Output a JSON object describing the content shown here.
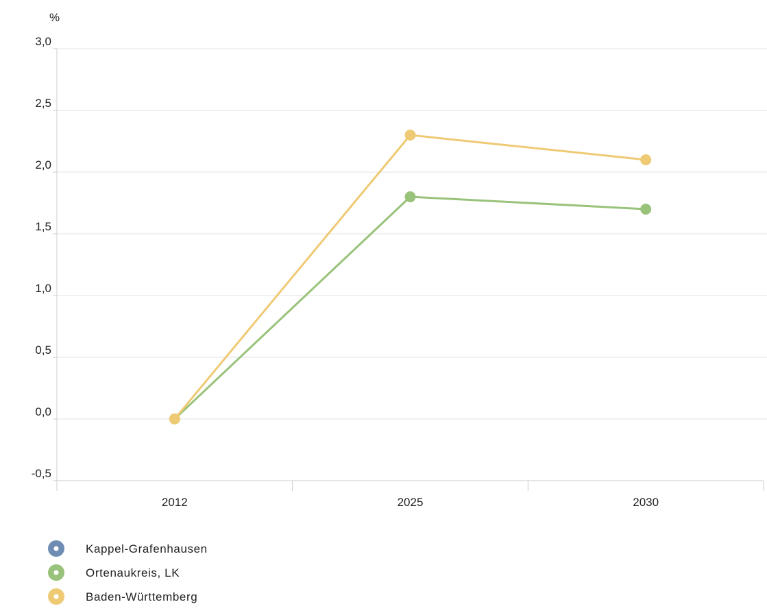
{
  "chart_data": {
    "type": "line",
    "unit_label": "%",
    "categories": [
      "2012",
      "2025",
      "2030"
    ],
    "y_ticks": [
      "-0,5",
      "0,0",
      "0,5",
      "1,0",
      "1,5",
      "2,0",
      "2,5",
      "3,0"
    ],
    "ylim": [
      -0.5,
      3.0
    ],
    "grid": true,
    "legend_position": "bottom-left",
    "series": [
      {
        "name": "Kappel-Grafenhausen",
        "color": "#6f8db3",
        "values": [
          null,
          null,
          null
        ]
      },
      {
        "name": "Ortenaukreis, LK",
        "color": "#99c27a",
        "values": [
          0.0,
          1.8,
          1.7
        ]
      },
      {
        "name": "Baden-Württemberg",
        "color": "#efca74",
        "values": [
          0.0,
          2.3,
          2.1
        ]
      }
    ]
  }
}
